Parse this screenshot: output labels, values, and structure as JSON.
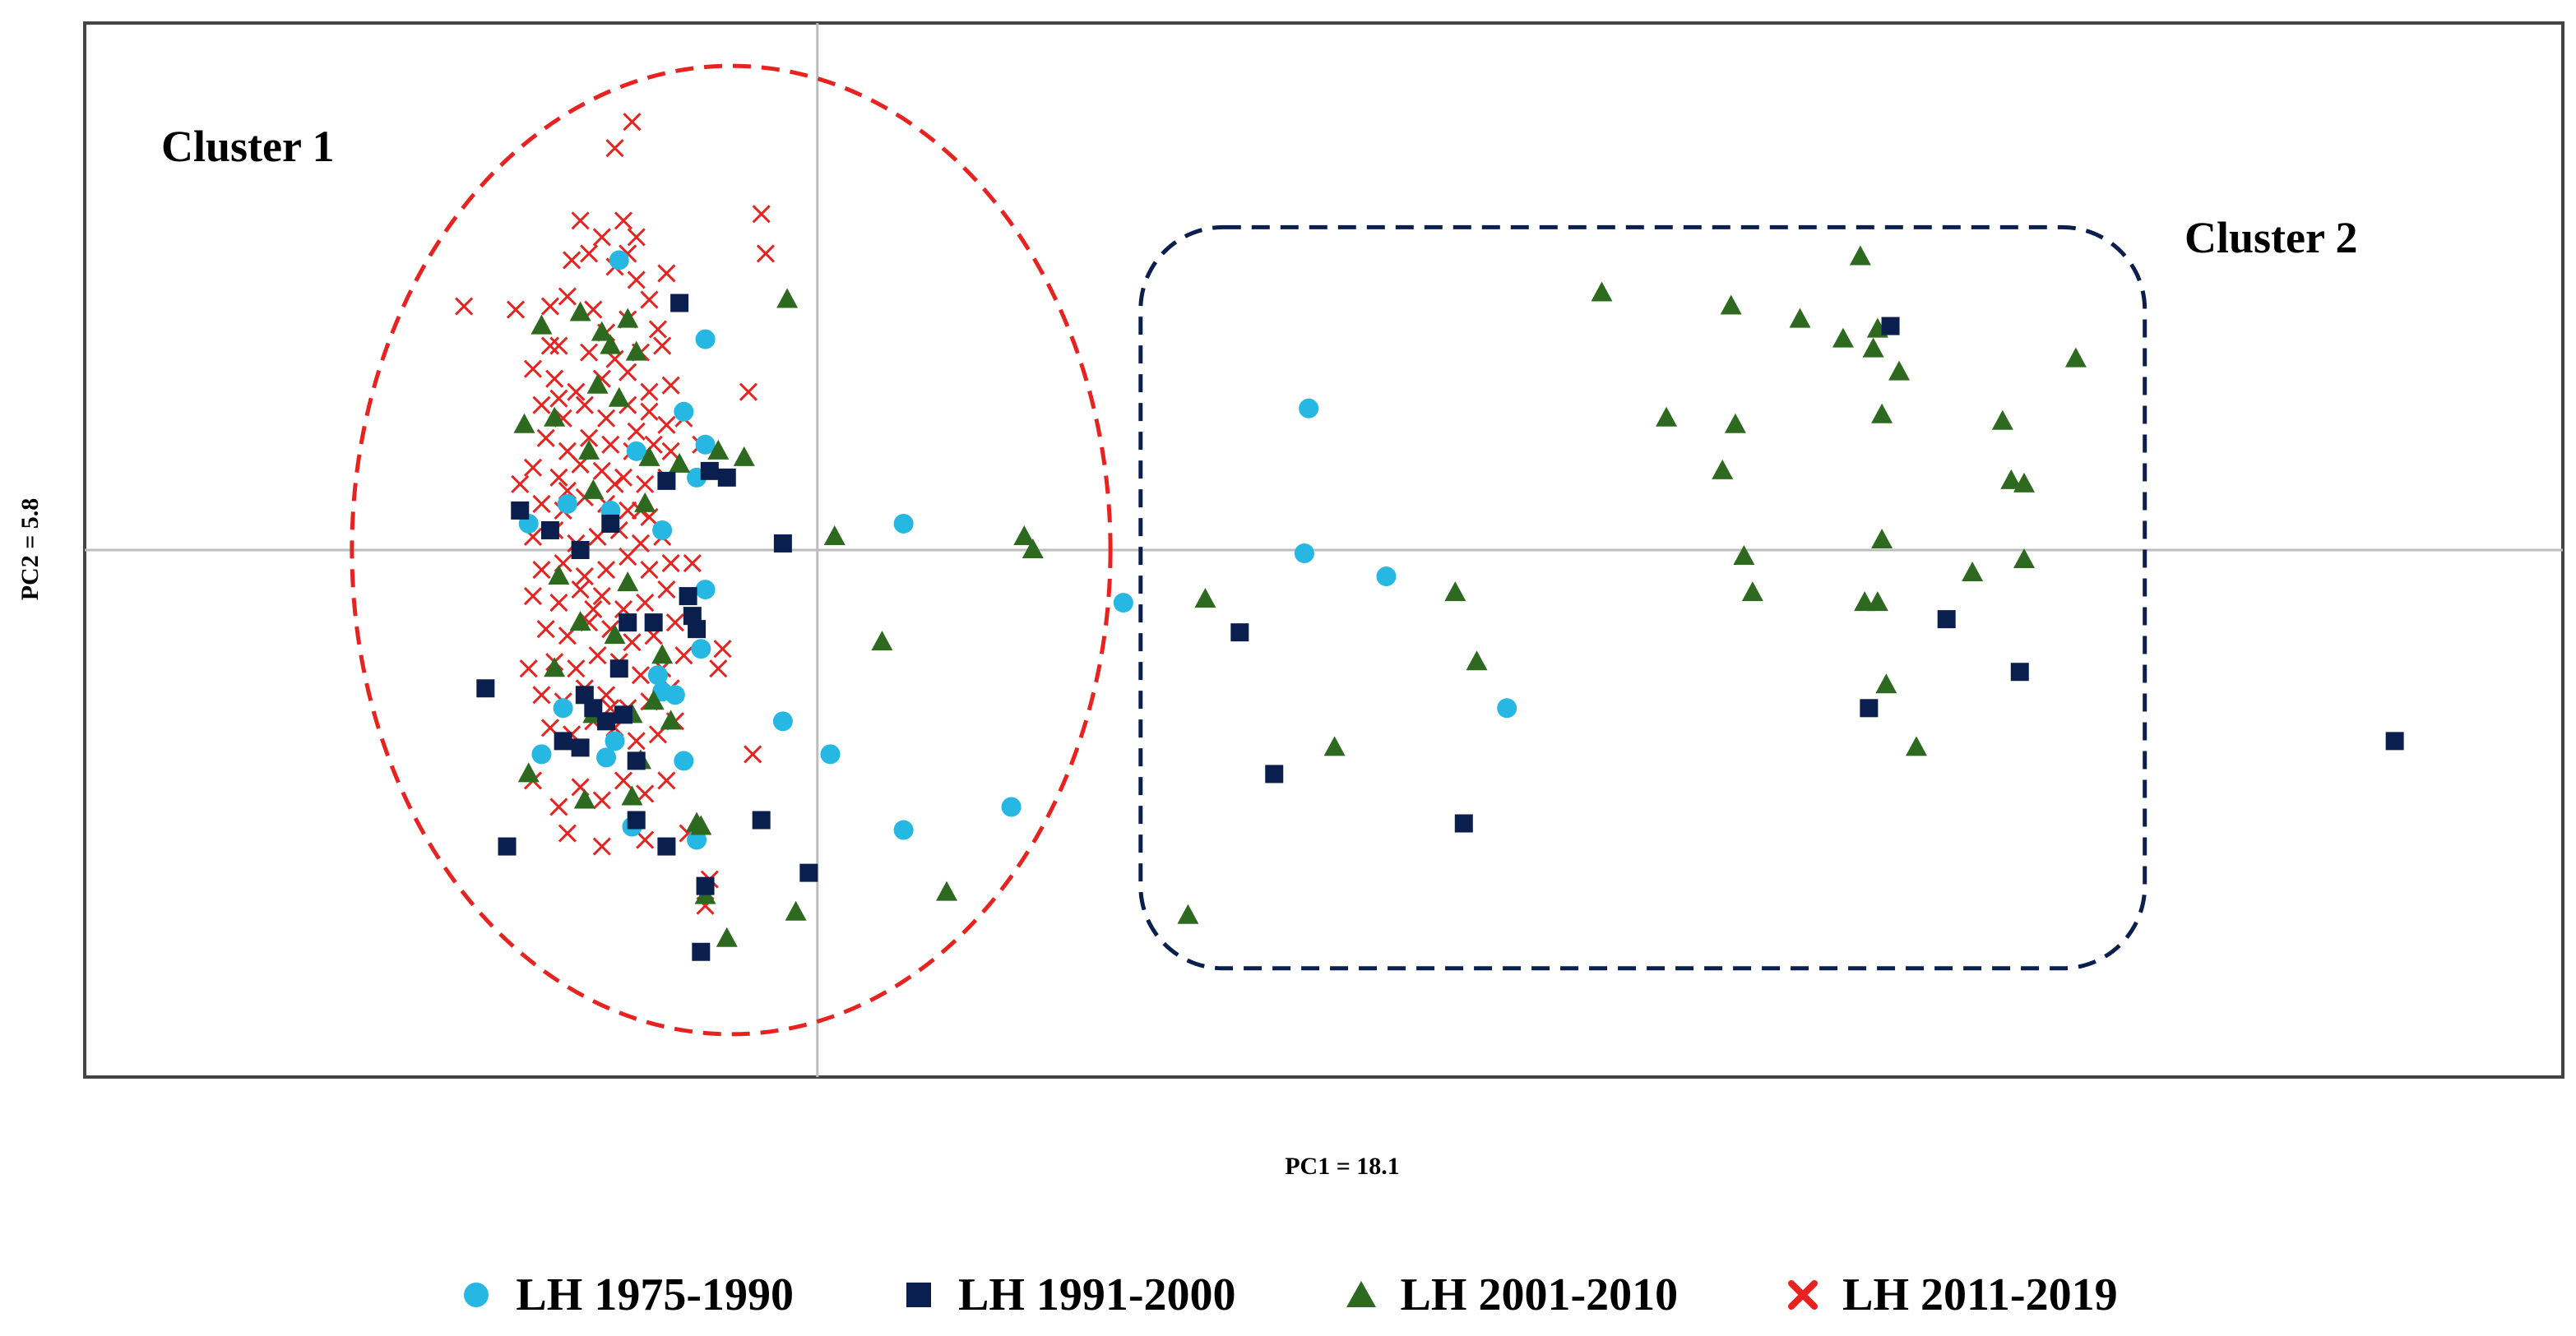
{
  "chart_data": {
    "type": "scatter",
    "title": "",
    "xlabel": "PC1 = 18.1",
    "ylabel": "PC2 = 5.8",
    "xlim": [
      -1.7,
      4.05
    ],
    "ylim": [
      -1.6,
      1.6
    ],
    "grid": false,
    "axes_crosshair": {
      "x": 0,
      "y": 0
    },
    "legend_position": "bottom",
    "annotations": [
      {
        "text": "Cluster 1",
        "shape": "ellipse",
        "color": "#e8231f",
        "style": "dashed",
        "center": [
          -0.2,
          0.0
        ],
        "radii": [
          0.88,
          1.47
        ]
      },
      {
        "text": "Cluster 2",
        "shape": "rounded-rectangle",
        "color": "#0b1f4f",
        "style": "dashed",
        "x_range": [
          0.75,
          3.08
        ],
        "y_range": [
          -1.27,
          0.98
        ]
      }
    ],
    "series": [
      {
        "name": "LH 1975-1990",
        "marker": "circle",
        "color": "#27b7e3",
        "points": [
          [
            -0.46,
            0.88
          ],
          [
            -0.67,
            0.08
          ],
          [
            -0.58,
            0.14
          ],
          [
            -0.26,
            0.64
          ],
          [
            -0.31,
            0.42
          ],
          [
            -0.42,
            0.3
          ],
          [
            -0.28,
            0.22
          ],
          [
            -0.26,
            0.32
          ],
          [
            -0.36,
            0.06
          ],
          [
            -0.48,
            0.12
          ],
          [
            -0.59,
            -0.48
          ],
          [
            -0.64,
            -0.62
          ],
          [
            -0.47,
            -0.58
          ],
          [
            -0.37,
            -0.38
          ],
          [
            -0.27,
            -0.3
          ],
          [
            -0.33,
            -0.44
          ],
          [
            -0.31,
            -0.64
          ],
          [
            -0.43,
            -0.84
          ],
          [
            -0.28,
            -0.88
          ],
          [
            -0.26,
            -0.12
          ],
          [
            -0.08,
            -0.52
          ],
          [
            0.03,
            -0.62
          ],
          [
            0.2,
            0.08
          ],
          [
            0.2,
            -0.85
          ],
          [
            0.45,
            -0.78
          ],
          [
            1.14,
            0.43
          ],
          [
            1.13,
            -0.01
          ],
          [
            1.32,
            -0.08
          ],
          [
            1.6,
            -0.48
          ],
          [
            0.71,
            -0.16
          ],
          [
            -0.49,
            -0.63
          ],
          [
            -0.36,
            -0.43
          ]
        ]
      },
      {
        "name": "LH 1991-2000",
        "marker": "square",
        "color": "#0b1f4f",
        "points": [
          [
            -0.32,
            0.75
          ],
          [
            -0.25,
            0.24
          ],
          [
            -0.21,
            0.22
          ],
          [
            -0.62,
            0.06
          ],
          [
            -0.69,
            0.12
          ],
          [
            -0.48,
            0.08
          ],
          [
            -0.55,
            0.0
          ],
          [
            -0.3,
            -0.14
          ],
          [
            -0.28,
            -0.24
          ],
          [
            -0.44,
            -0.22
          ],
          [
            -0.38,
            -0.22
          ],
          [
            -0.46,
            -0.36
          ],
          [
            -0.52,
            -0.48
          ],
          [
            -0.45,
            -0.5
          ],
          [
            -0.49,
            -0.52
          ],
          [
            -0.55,
            -0.6
          ],
          [
            -0.59,
            -0.58
          ],
          [
            -0.42,
            -0.64
          ],
          [
            -0.42,
            -0.82
          ],
          [
            -0.35,
            -0.9
          ],
          [
            -0.26,
            -1.02
          ],
          [
            -0.27,
            -1.22
          ],
          [
            -0.72,
            -0.9
          ],
          [
            -0.77,
            -0.42
          ],
          [
            -0.13,
            -0.82
          ],
          [
            -0.02,
            -0.98
          ],
          [
            -0.08,
            0.02
          ],
          [
            0.98,
            -0.25
          ],
          [
            1.06,
            -0.68
          ],
          [
            1.5,
            -0.83
          ],
          [
            2.49,
            0.68
          ],
          [
            2.62,
            -0.21
          ],
          [
            2.44,
            -0.48
          ],
          [
            2.79,
            -0.37
          ],
          [
            3.66,
            -0.58
          ],
          [
            -0.54,
            -0.44
          ],
          [
            -0.35,
            0.21
          ],
          [
            -0.29,
            -0.2
          ]
        ]
      },
      {
        "name": "LH 2001-2010",
        "marker": "triangle",
        "color": "#2d6a1f",
        "points": [
          [
            -0.64,
            0.68
          ],
          [
            -0.55,
            0.72
          ],
          [
            -0.48,
            0.62
          ],
          [
            -0.44,
            0.7
          ],
          [
            -0.42,
            0.6
          ],
          [
            -0.46,
            0.46
          ],
          [
            -0.51,
            0.5
          ],
          [
            -0.61,
            0.4
          ],
          [
            -0.68,
            0.38
          ],
          [
            -0.53,
            0.3
          ],
          [
            -0.39,
            0.28
          ],
          [
            -0.32,
            0.26
          ],
          [
            -0.23,
            0.3
          ],
          [
            -0.17,
            0.28
          ],
          [
            -0.4,
            0.14
          ],
          [
            -0.52,
            0.18
          ],
          [
            -0.44,
            -0.1
          ],
          [
            -0.55,
            -0.22
          ],
          [
            -0.61,
            -0.36
          ],
          [
            -0.52,
            -0.5
          ],
          [
            -0.43,
            -0.5
          ],
          [
            -0.34,
            -0.52
          ],
          [
            -0.41,
            -0.64
          ],
          [
            -0.67,
            -0.68
          ],
          [
            -0.54,
            -0.76
          ],
          [
            -0.43,
            -0.75
          ],
          [
            -0.27,
            -0.84
          ],
          [
            -0.26,
            -1.05
          ],
          [
            -0.21,
            -1.18
          ],
          [
            -0.05,
            -1.1
          ],
          [
            -0.07,
            0.76
          ],
          [
            0.04,
            0.04
          ],
          [
            0.15,
            -0.28
          ],
          [
            0.3,
            -1.04
          ],
          [
            0.48,
            0.04
          ],
          [
            0.5,
            0.0
          ],
          [
            0.9,
            -0.15
          ],
          [
            1.2,
            -0.6
          ],
          [
            1.48,
            -0.13
          ],
          [
            1.53,
            -0.34
          ],
          [
            0.86,
            -1.11
          ],
          [
            1.82,
            0.78
          ],
          [
            1.97,
            0.4
          ],
          [
            2.12,
            0.74
          ],
          [
            2.13,
            0.38
          ],
          [
            2.1,
            0.24
          ],
          [
            2.15,
            -0.02
          ],
          [
            2.17,
            -0.13
          ],
          [
            2.28,
            0.7
          ],
          [
            2.38,
            0.64
          ],
          [
            2.42,
            0.89
          ],
          [
            2.45,
            0.61
          ],
          [
            2.46,
            0.67
          ],
          [
            2.51,
            0.54
          ],
          [
            2.47,
            0.41
          ],
          [
            2.47,
            0.03
          ],
          [
            2.46,
            -0.16
          ],
          [
            2.43,
            -0.16
          ],
          [
            2.48,
            -0.41
          ],
          [
            2.55,
            -0.6
          ],
          [
            2.68,
            -0.07
          ],
          [
            2.75,
            0.39
          ],
          [
            2.77,
            0.21
          ],
          [
            2.8,
            0.2
          ],
          [
            2.8,
            -0.03
          ],
          [
            2.92,
            0.58
          ],
          [
            -0.28,
            -0.83
          ],
          [
            -0.36,
            -0.32
          ],
          [
            -0.47,
            -0.26
          ],
          [
            -0.6,
            -0.08
          ],
          [
            -0.5,
            0.66
          ],
          [
            -0.38,
            -0.46
          ]
        ]
      },
      {
        "name": "LH 2011-2019",
        "marker": "x",
        "color": "#e8231f",
        "points": [
          [
            -0.43,
            1.3
          ],
          [
            -0.47,
            1.22
          ],
          [
            -0.13,
            1.02
          ],
          [
            -0.7,
            0.73
          ],
          [
            -0.45,
            1.0
          ],
          [
            -0.5,
            0.95
          ],
          [
            -0.42,
            0.95
          ],
          [
            -0.53,
            0.9
          ],
          [
            -0.47,
            0.86
          ],
          [
            -0.42,
            0.82
          ],
          [
            -0.39,
            0.76
          ],
          [
            -0.58,
            0.77
          ],
          [
            -0.62,
            0.74
          ],
          [
            -0.52,
            0.73
          ],
          [
            -0.44,
            0.7
          ],
          [
            -0.37,
            0.67
          ],
          [
            -0.6,
            0.62
          ],
          [
            -0.53,
            0.6
          ],
          [
            -0.47,
            0.58
          ],
          [
            -0.41,
            0.6
          ],
          [
            -0.36,
            0.62
          ],
          [
            -0.66,
            0.55
          ],
          [
            -0.61,
            0.52
          ],
          [
            -0.56,
            0.48
          ],
          [
            -0.5,
            0.52
          ],
          [
            -0.44,
            0.54
          ],
          [
            -0.39,
            0.48
          ],
          [
            -0.34,
            0.5
          ],
          [
            -0.64,
            0.44
          ],
          [
            -0.59,
            0.4
          ],
          [
            -0.54,
            0.44
          ],
          [
            -0.49,
            0.4
          ],
          [
            -0.44,
            0.44
          ],
          [
            -0.39,
            0.42
          ],
          [
            -0.35,
            0.38
          ],
          [
            -0.63,
            0.34
          ],
          [
            -0.58,
            0.3
          ],
          [
            -0.53,
            0.34
          ],
          [
            -0.48,
            0.32
          ],
          [
            -0.43,
            0.3
          ],
          [
            -0.38,
            0.32
          ],
          [
            -0.34,
            0.3
          ],
          [
            -0.66,
            0.25
          ],
          [
            -0.6,
            0.22
          ],
          [
            -0.55,
            0.26
          ],
          [
            -0.5,
            0.24
          ],
          [
            -0.45,
            0.22
          ],
          [
            -0.4,
            0.2
          ],
          [
            -0.35,
            0.22
          ],
          [
            -0.64,
            0.14
          ],
          [
            -0.59,
            0.12
          ],
          [
            -0.54,
            0.16
          ],
          [
            -0.49,
            0.14
          ],
          [
            -0.44,
            0.12
          ],
          [
            -0.39,
            0.1
          ],
          [
            -0.66,
            0.04
          ],
          [
            -0.61,
            0.06
          ],
          [
            -0.56,
            0.02
          ],
          [
            -0.51,
            0.04
          ],
          [
            -0.46,
            0.06
          ],
          [
            -0.41,
            0.02
          ],
          [
            -0.36,
            0.04
          ],
          [
            -0.64,
            -0.06
          ],
          [
            -0.59,
            -0.04
          ],
          [
            -0.54,
            -0.08
          ],
          [
            -0.49,
            -0.06
          ],
          [
            -0.44,
            -0.02
          ],
          [
            -0.39,
            -0.06
          ],
          [
            -0.34,
            -0.04
          ],
          [
            -0.66,
            -0.14
          ],
          [
            -0.6,
            -0.16
          ],
          [
            -0.55,
            -0.12
          ],
          [
            -0.5,
            -0.14
          ],
          [
            -0.45,
            -0.18
          ],
          [
            -0.4,
            -0.16
          ],
          [
            -0.35,
            -0.12
          ],
          [
            -0.63,
            -0.24
          ],
          [
            -0.58,
            -0.26
          ],
          [
            -0.53,
            -0.22
          ],
          [
            -0.48,
            -0.24
          ],
          [
            -0.43,
            -0.28
          ],
          [
            -0.38,
            -0.26
          ],
          [
            -0.33,
            -0.22
          ],
          [
            -0.61,
            -0.34
          ],
          [
            -0.56,
            -0.36
          ],
          [
            -0.51,
            -0.32
          ],
          [
            -0.46,
            -0.34
          ],
          [
            -0.41,
            -0.38
          ],
          [
            -0.36,
            -0.36
          ],
          [
            -0.31,
            -0.32
          ],
          [
            -0.64,
            -0.44
          ],
          [
            -0.59,
            -0.46
          ],
          [
            -0.54,
            -0.42
          ],
          [
            -0.49,
            -0.44
          ],
          [
            -0.44,
            -0.48
          ],
          [
            -0.39,
            -0.46
          ],
          [
            -0.34,
            -0.42
          ],
          [
            -0.62,
            -0.54
          ],
          [
            -0.57,
            -0.56
          ],
          [
            -0.52,
            -0.52
          ],
          [
            -0.47,
            -0.54
          ],
          [
            -0.42,
            -0.58
          ],
          [
            -0.37,
            -0.56
          ],
          [
            -0.33,
            -0.52
          ],
          [
            -0.66,
            -0.7
          ],
          [
            -0.6,
            -0.78
          ],
          [
            -0.55,
            -0.72
          ],
          [
            -0.5,
            -0.76
          ],
          [
            -0.45,
            -0.7
          ],
          [
            -0.4,
            -0.74
          ],
          [
            -0.35,
            -0.7
          ],
          [
            -0.58,
            -0.86
          ],
          [
            -0.5,
            -0.9
          ],
          [
            -0.4,
            -0.88
          ],
          [
            -0.3,
            -0.86
          ],
          [
            -0.25,
            -1.0
          ],
          [
            -0.26,
            -1.08
          ],
          [
            -0.22,
            -0.3
          ],
          [
            -0.23,
            -0.36
          ],
          [
            -0.16,
            0.48
          ],
          [
            -0.35,
            0.84
          ],
          [
            -0.55,
            1.0
          ],
          [
            -0.31,
            0.4
          ],
          [
            -0.69,
            0.2
          ],
          [
            -0.67,
            -0.36
          ],
          [
            -0.15,
            -0.62
          ],
          [
            -0.12,
            0.9
          ],
          [
            -0.27,
            0.32
          ],
          [
            -0.44,
            0.9
          ],
          [
            -0.49,
            0.66
          ],
          [
            -0.57,
            0.88
          ],
          [
            -0.62,
            0.62
          ],
          [
            -0.6,
            0.46
          ],
          [
            -0.41,
            0.12
          ],
          [
            -0.29,
            -0.04
          ],
          [
            -0.48,
            -0.48
          ],
          [
            -0.42,
            0.36
          ],
          [
            -0.58,
            0.18
          ],
          [
            -0.52,
            -0.18
          ],
          [
            -0.47,
            0.2
          ],
          [
            -0.82,
            0.74
          ]
        ]
      }
    ]
  }
}
